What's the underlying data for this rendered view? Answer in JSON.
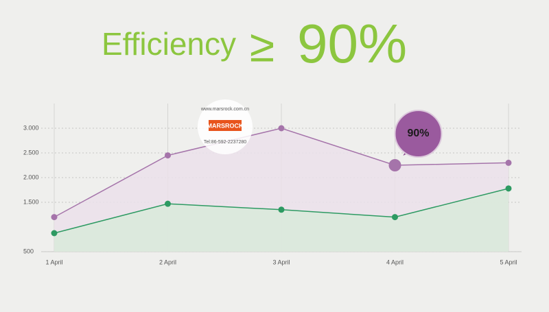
{
  "chart_data": {
    "type": "line",
    "title": "Efficiency",
    "title_relation": "≥",
    "title_value": "90%",
    "annotation": "90%",
    "watermark": {
      "url": "www.marsrock.com.cn",
      "brand": "MARSROCK",
      "phone": "Tel:86-592-2237280"
    },
    "categories": [
      "1 April",
      "2 April",
      "3 April",
      "4 April",
      "5 April"
    ],
    "series": [
      {
        "color": "#a574aa",
        "fill": "#ebe0ea",
        "values": [
          1200,
          2450,
          3000,
          2250,
          2300
        ]
      },
      {
        "color": "#2d9a62",
        "fill": "#d9eadb",
        "values": [
          875,
          1470,
          1350,
          1200,
          1780
        ]
      }
    ],
    "highlight_index": 3,
    "ylim": [
      500,
      3500
    ],
    "yticks": [
      {
        "value": 3000,
        "label": "3.000"
      },
      {
        "value": 2500,
        "label": "2.500"
      },
      {
        "value": 2000,
        "label": "2.000"
      },
      {
        "value": 1500,
        "label": "1.500"
      },
      500
    ],
    "grid": true
  }
}
